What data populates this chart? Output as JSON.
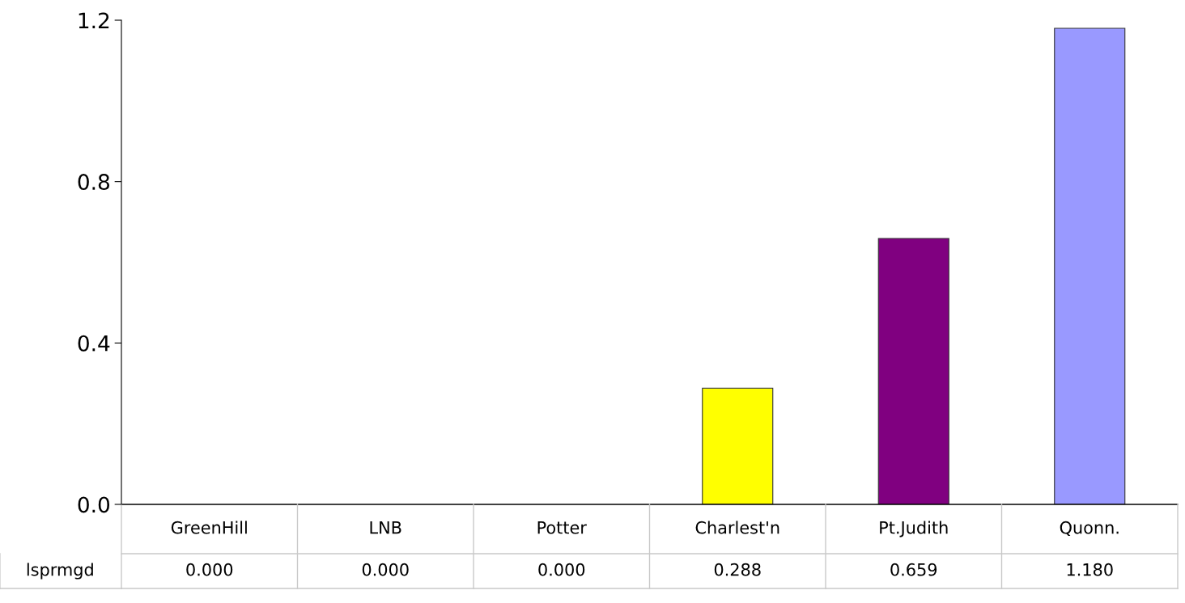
{
  "chart_data": {
    "type": "bar",
    "categories": [
      "GreenHill",
      "LNB",
      "Potter",
      "Charlest'n",
      "Pt.Judith",
      "Quonn."
    ],
    "series": [
      {
        "name": "lsprmgd",
        "values": [
          0.0,
          0.0,
          0.0,
          0.288,
          0.659,
          1.18
        ],
        "colors": [
          null,
          null,
          null,
          "#ffff00",
          "#800080",
          "#9999ff"
        ],
        "value_labels": [
          "0.000",
          "0.000",
          "0.000",
          "0.288",
          "0.659",
          "1.180"
        ]
      }
    ],
    "ylim": [
      0,
      1.2
    ],
    "yticks": [
      {
        "value": 0,
        "label": "0.0"
      },
      {
        "value": 0.4,
        "label": "0.4"
      },
      {
        "value": 0.8,
        "label": "0.8"
      },
      {
        "value": 1.2,
        "label": "1.2"
      }
    ],
    "grid": false,
    "legend": false
  }
}
